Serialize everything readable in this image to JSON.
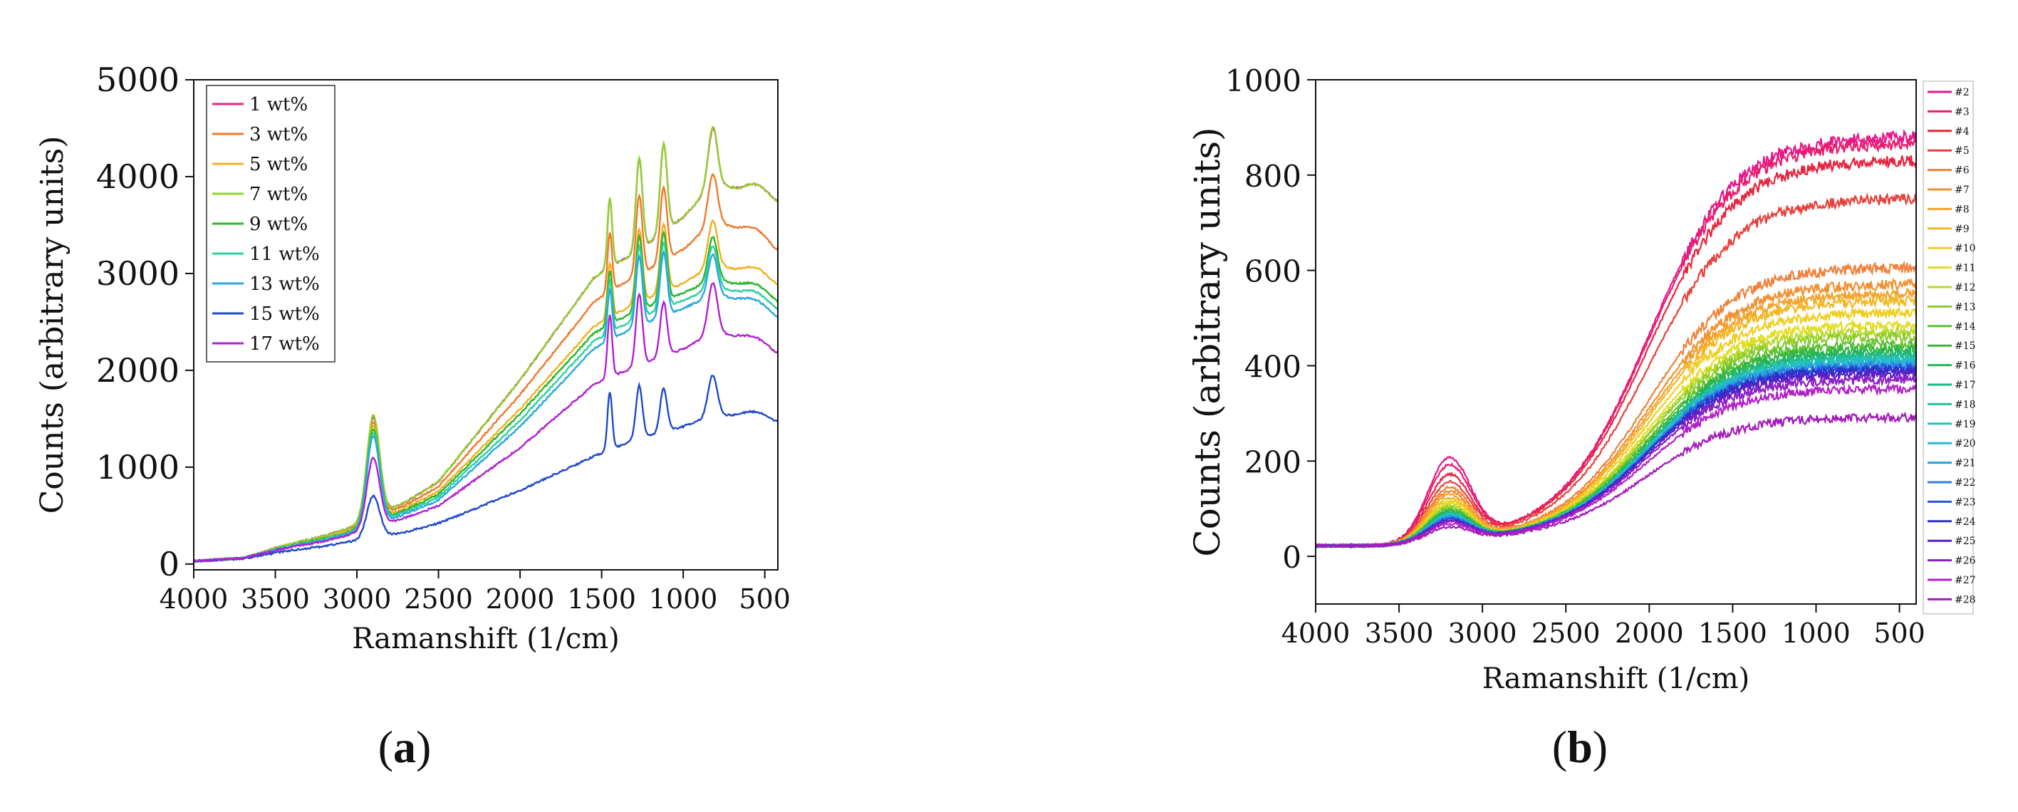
{
  "chart_data": [
    {
      "type": "line",
      "panel_label": "(a)",
      "panel_letter": "a",
      "xlabel": "Ramanshift (1/cm)",
      "ylabel": "Counts (arbitrary units)",
      "xlim": [
        4000,
        420
      ],
      "ylim": [
        -60,
        5000
      ],
      "xticks": [
        4000,
        3500,
        3000,
        2500,
        2000,
        1500,
        1000,
        500
      ],
      "yticks": [
        0,
        1000,
        2000,
        3000,
        4000,
        5000
      ],
      "legend_position": "top-left",
      "peaks": [
        {
          "x": 2900,
          "w": 55
        },
        {
          "x": 1450,
          "w": 20
        },
        {
          "x": 1270,
          "w": 28
        },
        {
          "x": 1120,
          "w": 30
        },
        {
          "x": 820,
          "w": 40
        },
        {
          "x": 550,
          "w": 110
        }
      ],
      "series": [
        {
          "name": "1 wt%",
          "color": "#e8228a",
          "amp": 1.0,
          "base": [
            [
              4000,
              30
            ],
            [
              3700,
              60
            ],
            [
              3450,
              190
            ],
            [
              3200,
              290
            ],
            [
              3050,
              370
            ],
            [
              2700,
              640
            ],
            [
              2500,
              850
            ],
            [
              2000,
              1900
            ],
            [
              1550,
              2950
            ],
            [
              1420,
              3100
            ],
            [
              1300,
              3200
            ],
            [
              1000,
              3580
            ],
            [
              800,
              3950
            ],
            [
              650,
              3820
            ],
            [
              420,
              3700
            ]
          ],
          "peaks": [
            1030,
            700,
            950,
            900,
            580,
            150
          ]
        },
        {
          "name": "3 wt%",
          "color": "#f0782a",
          "amp": 1.0,
          "base": [
            [
              4000,
              30
            ],
            [
              3700,
              60
            ],
            [
              3450,
              185
            ],
            [
              3200,
              280
            ],
            [
              3050,
              360
            ],
            [
              2700,
              610
            ],
            [
              2500,
              800
            ],
            [
              2000,
              1750
            ],
            [
              1550,
              2700
            ],
            [
              1420,
              2850
            ],
            [
              1300,
              2950
            ],
            [
              1000,
              3250
            ],
            [
              800,
              3550
            ],
            [
              650,
              3420
            ],
            [
              420,
              3200
            ]
          ],
          "peaks": [
            1000,
            600,
            820,
            760,
            500,
            130
          ]
        },
        {
          "name": "5 wt%",
          "color": "#f2b01c",
          "amp": 1.0,
          "base": [
            [
              4000,
              30
            ],
            [
              3700,
              60
            ],
            [
              3450,
              180
            ],
            [
              3200,
              270
            ],
            [
              3050,
              340
            ],
            [
              2700,
              580
            ],
            [
              2500,
              750
            ],
            [
              2000,
              1600
            ],
            [
              1550,
              2450
            ],
            [
              1420,
              2580
            ],
            [
              1300,
              2680
            ],
            [
              1000,
              2900
            ],
            [
              800,
              3100
            ],
            [
              650,
              3000
            ],
            [
              420,
              2850
            ]
          ],
          "peaks": [
            980,
            560,
            760,
            700,
            460,
            120
          ]
        },
        {
          "name": "7 wt%",
          "color": "#8fd42e",
          "amp": 1.0,
          "base": [
            [
              4000,
              30
            ],
            [
              3700,
              60
            ],
            [
              3450,
              190
            ],
            [
              3200,
              290
            ],
            [
              3050,
              370
            ],
            [
              2700,
              640
            ],
            [
              2500,
              850
            ],
            [
              2000,
              1900
            ],
            [
              1550,
              2950
            ],
            [
              1420,
              3100
            ],
            [
              1300,
              3200
            ],
            [
              1000,
              3580
            ],
            [
              800,
              3950
            ],
            [
              650,
              3820
            ],
            [
              420,
              3700
            ]
          ],
          "peaks": [
            1050,
            720,
            960,
            920,
            600,
            150
          ]
        },
        {
          "name": "9 wt%",
          "color": "#2db52d",
          "amp": 1.0,
          "base": [
            [
              4000,
              30
            ],
            [
              3700,
              60
            ],
            [
              3450,
              175
            ],
            [
              3200,
              265
            ],
            [
              3050,
              330
            ],
            [
              2700,
              560
            ],
            [
              2500,
              720
            ],
            [
              2000,
              1550
            ],
            [
              1550,
              2380
            ],
            [
              1420,
              2500
            ],
            [
              1300,
              2600
            ],
            [
              1000,
              2800
            ],
            [
              800,
              2950
            ],
            [
              650,
              2850
            ],
            [
              420,
              2680
            ]
          ],
          "peaks": [
            960,
            560,
            760,
            700,
            440,
            110
          ]
        },
        {
          "name": "11 wt%",
          "color": "#2fcfa2",
          "amp": 1.0,
          "base": [
            [
              4000,
              30
            ],
            [
              3700,
              60
            ],
            [
              3450,
              170
            ],
            [
              3200,
              255
            ],
            [
              3050,
              320
            ],
            [
              2700,
              540
            ],
            [
              2500,
              690
            ],
            [
              2000,
              1480
            ],
            [
              1550,
              2300
            ],
            [
              1420,
              2420
            ],
            [
              1300,
              2520
            ],
            [
              1000,
              2720
            ],
            [
              800,
              2870
            ],
            [
              650,
              2770
            ],
            [
              420,
              2600
            ]
          ],
          "peaks": [
            940,
            540,
            740,
            680,
            430,
            110
          ]
        },
        {
          "name": "13 wt%",
          "color": "#2aa6e2",
          "amp": 1.0,
          "base": [
            [
              4000,
              30
            ],
            [
              3700,
              60
            ],
            [
              3450,
              165
            ],
            [
              3200,
              245
            ],
            [
              3050,
              310
            ],
            [
              2700,
              520
            ],
            [
              2500,
              660
            ],
            [
              2000,
              1420
            ],
            [
              1550,
              2220
            ],
            [
              1420,
              2340
            ],
            [
              1300,
              2440
            ],
            [
              1000,
              2640
            ],
            [
              800,
              2790
            ],
            [
              650,
              2700
            ],
            [
              420,
              2520
            ]
          ],
          "peaks": [
            920,
            520,
            720,
            660,
            420,
            100
          ]
        },
        {
          "name": "15 wt%",
          "color": "#1f49c9",
          "amp": 1.0,
          "base": [
            [
              4000,
              30
            ],
            [
              3700,
              55
            ],
            [
              3450,
              130
            ],
            [
              3200,
              185
            ],
            [
              3050,
              230
            ],
            [
              2700,
              330
            ],
            [
              2500,
              420
            ],
            [
              2000,
              760
            ],
            [
              1550,
              1110
            ],
            [
              1420,
              1200
            ],
            [
              1300,
              1280
            ],
            [
              1000,
              1420
            ],
            [
              800,
              1540
            ],
            [
              650,
              1520
            ],
            [
              420,
              1450
            ]
          ],
          "peaks": [
            430,
            600,
            550,
            450,
            420,
            80
          ]
        },
        {
          "name": "17 wt%",
          "color": "#b21fd1",
          "amp": 1.0,
          "base": [
            [
              4000,
              30
            ],
            [
              3700,
              60
            ],
            [
              3450,
              160
            ],
            [
              3200,
              235
            ],
            [
              3050,
              300
            ],
            [
              2700,
              480
            ],
            [
              2500,
              600
            ],
            [
              2000,
              1200
            ],
            [
              1550,
              1850
            ],
            [
              1420,
              1950
            ],
            [
              1300,
              2030
            ],
            [
              1000,
              2220
            ],
            [
              800,
              2400
            ],
            [
              650,
              2320
            ],
            [
              420,
              2150
            ]
          ],
          "peaks": [
            720,
            650,
            740,
            560,
            520,
            90
          ]
        }
      ]
    },
    {
      "type": "line",
      "panel_label": "(b)",
      "panel_letter": "b",
      "xlabel": "Ramanshift (1/cm)",
      "ylabel": "Counts (arbitrary units)",
      "xlim": [
        4000,
        400
      ],
      "ylim": [
        -100,
        1000
      ],
      "xticks": [
        4000,
        3500,
        3000,
        2500,
        2000,
        1500,
        1000,
        500
      ],
      "yticks": [
        0,
        200,
        400,
        600,
        800,
        1000
      ],
      "legend_position": "right",
      "series_count_note": "27 spectra",
      "series": [
        {
          "name": "#2",
          "color": "#e5178a",
          "top": 890,
          "hump": 200
        },
        {
          "name": "#3",
          "color": "#e81d6e",
          "top": 875,
          "hump": 185
        },
        {
          "name": "#4",
          "color": "#e8233d",
          "top": 840,
          "hump": 165
        },
        {
          "name": "#5",
          "color": "#e8403a",
          "top": 760,
          "hump": 150
        },
        {
          "name": "#6",
          "color": "#f0803a",
          "top": 615,
          "hump": 140
        },
        {
          "name": "#7",
          "color": "#f29030",
          "top": 580,
          "hump": 132
        },
        {
          "name": "#8",
          "color": "#f4a22a",
          "top": 560,
          "hump": 125
        },
        {
          "name": "#9",
          "color": "#f3b722",
          "top": 545,
          "hump": 118
        },
        {
          "name": "#10",
          "color": "#f0cd1e",
          "top": 520,
          "hump": 112
        },
        {
          "name": "#11",
          "color": "#e3dc20",
          "top": 495,
          "hump": 108
        },
        {
          "name": "#12",
          "color": "#b5d92a",
          "top": 480,
          "hump": 104
        },
        {
          "name": "#13",
          "color": "#8ccc2e",
          "top": 470,
          "hump": 100
        },
        {
          "name": "#14",
          "color": "#5ec232",
          "top": 455,
          "hump": 96
        },
        {
          "name": "#15",
          "color": "#34b640",
          "top": 445,
          "hump": 93
        },
        {
          "name": "#16",
          "color": "#22b45e",
          "top": 435,
          "hump": 90
        },
        {
          "name": "#17",
          "color": "#1fb881",
          "top": 430,
          "hump": 88
        },
        {
          "name": "#18",
          "color": "#22bfa0",
          "top": 425,
          "hump": 86
        },
        {
          "name": "#19",
          "color": "#25c4bc",
          "top": 420,
          "hump": 84
        },
        {
          "name": "#20",
          "color": "#27b9d4",
          "top": 416,
          "hump": 82
        },
        {
          "name": "#21",
          "color": "#2a9fe0",
          "top": 412,
          "hump": 80
        },
        {
          "name": "#22",
          "color": "#2b80e0",
          "top": 408,
          "hump": 78
        },
        {
          "name": "#23",
          "color": "#2a52d8",
          "top": 404,
          "hump": 76
        },
        {
          "name": "#24",
          "color": "#2b2fc8",
          "top": 400,
          "hump": 74
        },
        {
          "name": "#25",
          "color": "#5a1fc4",
          "top": 392,
          "hump": 72
        },
        {
          "name": "#26",
          "color": "#8a1fc6",
          "top": 380,
          "hump": 70
        },
        {
          "name": "#27",
          "color": "#b11fc8",
          "top": 360,
          "hump": 66
        },
        {
          "name": "#28",
          "color": "#a31ab9",
          "top": 300,
          "hump": 60
        }
      ]
    }
  ]
}
